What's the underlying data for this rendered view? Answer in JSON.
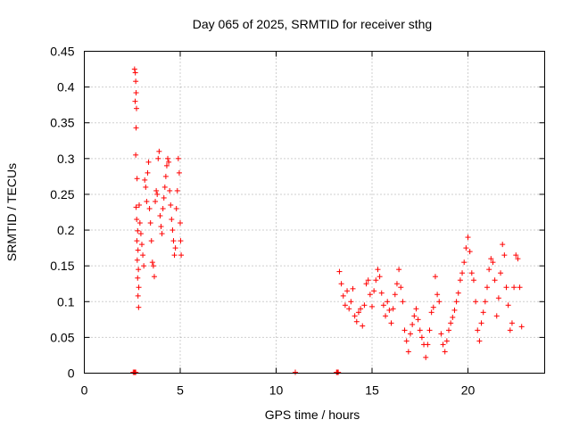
{
  "chart_data": {
    "type": "scatter",
    "title": "Day 065 of 2025, SRMTID for receiver sthg",
    "xlabel": "GPS time / hours",
    "ylabel": "SRMTID / TECUs",
    "xlim": [
      0,
      24
    ],
    "ylim": [
      0,
      0.45
    ],
    "xticks": [
      0,
      5,
      10,
      15,
      20
    ],
    "xtick_labels": [
      "0",
      "5",
      "10",
      "15",
      "20"
    ],
    "yticks": [
      0,
      0.05,
      0.1,
      0.15,
      0.2,
      0.25,
      0.3,
      0.35,
      0.4,
      0.45
    ],
    "ytick_labels": [
      "0",
      "0.05",
      "0.1",
      "0.15",
      "0.2",
      "0.25",
      "0.3",
      "0.35",
      "0.4",
      "0.45"
    ],
    "grid": true,
    "marker": "+",
    "color": "#ff0000",
    "series": [
      {
        "name": "SRMTID",
        "points": [
          [
            2.62,
            0.425
          ],
          [
            2.66,
            0.42
          ],
          [
            2.68,
            0.408
          ],
          [
            2.7,
            0.392
          ],
          [
            2.65,
            0.38
          ],
          [
            2.72,
            0.37
          ],
          [
            2.7,
            0.343
          ],
          [
            2.68,
            0.305
          ],
          [
            2.75,
            0.272
          ],
          [
            2.7,
            0.232
          ],
          [
            2.73,
            0.215
          ],
          [
            2.78,
            0.199
          ],
          [
            2.74,
            0.185
          ],
          [
            2.8,
            0.172
          ],
          [
            2.76,
            0.158
          ],
          [
            2.82,
            0.145
          ],
          [
            2.78,
            0.133
          ],
          [
            2.84,
            0.12
          ],
          [
            2.8,
            0.108
          ],
          [
            2.83,
            0.092
          ],
          [
            2.86,
            0.235
          ],
          [
            2.9,
            0.21
          ],
          [
            2.95,
            0.195
          ],
          [
            3.0,
            0.18
          ],
          [
            3.05,
            0.165
          ],
          [
            3.1,
            0.15
          ],
          [
            3.15,
            0.27
          ],
          [
            3.2,
            0.26
          ],
          [
            3.25,
            0.24
          ],
          [
            3.3,
            0.28
          ],
          [
            3.35,
            0.295
          ],
          [
            3.4,
            0.23
          ],
          [
            3.45,
            0.21
          ],
          [
            3.5,
            0.185
          ],
          [
            3.55,
            0.155
          ],
          [
            3.6,
            0.15
          ],
          [
            3.65,
            0.135
          ],
          [
            3.7,
            0.24
          ],
          [
            3.75,
            0.255
          ],
          [
            3.8,
            0.25
          ],
          [
            3.85,
            0.3
          ],
          [
            3.9,
            0.31
          ],
          [
            3.95,
            0.22
          ],
          [
            4.0,
            0.205
          ],
          [
            4.05,
            0.195
          ],
          [
            4.1,
            0.23
          ],
          [
            4.15,
            0.245
          ],
          [
            4.2,
            0.26
          ],
          [
            4.25,
            0.275
          ],
          [
            4.3,
            0.29
          ],
          [
            4.35,
            0.3
          ],
          [
            4.4,
            0.295
          ],
          [
            4.45,
            0.255
          ],
          [
            4.5,
            0.235
          ],
          [
            4.55,
            0.215
          ],
          [
            4.6,
            0.2
          ],
          [
            4.65,
            0.185
          ],
          [
            4.7,
            0.165
          ],
          [
            4.75,
            0.175
          ],
          [
            4.8,
            0.23
          ],
          [
            4.85,
            0.255
          ],
          [
            4.9,
            0.3
          ],
          [
            4.95,
            0.28
          ],
          [
            5.0,
            0.21
          ],
          [
            5.02,
            0.185
          ],
          [
            5.05,
            0.165
          ],
          [
            13.3,
            0.142
          ],
          [
            13.4,
            0.125
          ],
          [
            13.5,
            0.108
          ],
          [
            13.6,
            0.095
          ],
          [
            13.7,
            0.115
          ],
          [
            13.8,
            0.09
          ],
          [
            13.9,
            0.1
          ],
          [
            14.0,
            0.118
          ],
          [
            14.1,
            0.08
          ],
          [
            14.2,
            0.072
          ],
          [
            14.3,
            0.085
          ],
          [
            14.4,
            0.09
          ],
          [
            14.5,
            0.066
          ],
          [
            14.6,
            0.095
          ],
          [
            14.7,
            0.125
          ],
          [
            14.8,
            0.13
          ],
          [
            14.9,
            0.11
          ],
          [
            15.0,
            0.093
          ],
          [
            15.1,
            0.115
          ],
          [
            15.2,
            0.13
          ],
          [
            15.3,
            0.145
          ],
          [
            15.4,
            0.135
          ],
          [
            15.5,
            0.112
          ],
          [
            15.6,
            0.095
          ],
          [
            15.7,
            0.08
          ],
          [
            15.8,
            0.1
          ],
          [
            15.9,
            0.088
          ],
          [
            16.0,
            0.07
          ],
          [
            16.1,
            0.09
          ],
          [
            16.2,
            0.11
          ],
          [
            16.3,
            0.125
          ],
          [
            16.4,
            0.145
          ],
          [
            16.5,
            0.12
          ],
          [
            16.6,
            0.1
          ],
          [
            16.7,
            0.06
          ],
          [
            16.8,
            0.045
          ],
          [
            16.9,
            0.03
          ],
          [
            17.0,
            0.055
          ],
          [
            17.1,
            0.068
          ],
          [
            17.2,
            0.08
          ],
          [
            17.3,
            0.09
          ],
          [
            17.4,
            0.075
          ],
          [
            17.5,
            0.06
          ],
          [
            17.6,
            0.05
          ],
          [
            17.7,
            0.04
          ],
          [
            17.8,
            0.022
          ],
          [
            17.9,
            0.04
          ],
          [
            18.0,
            0.06
          ],
          [
            18.1,
            0.085
          ],
          [
            18.2,
            0.092
          ],
          [
            18.3,
            0.135
          ],
          [
            18.4,
            0.11
          ],
          [
            18.5,
            0.1
          ],
          [
            18.6,
            0.055
          ],
          [
            18.7,
            0.04
          ],
          [
            18.8,
            0.03
          ],
          [
            18.9,
            0.045
          ],
          [
            19.0,
            0.06
          ],
          [
            19.1,
            0.07
          ],
          [
            19.2,
            0.078
          ],
          [
            19.3,
            0.088
          ],
          [
            19.4,
            0.1
          ],
          [
            19.5,
            0.112
          ],
          [
            19.6,
            0.13
          ],
          [
            19.7,
            0.14
          ],
          [
            19.8,
            0.155
          ],
          [
            19.9,
            0.175
          ],
          [
            20.0,
            0.19
          ],
          [
            20.1,
            0.17
          ],
          [
            20.2,
            0.14
          ],
          [
            20.3,
            0.13
          ],
          [
            20.4,
            0.1
          ],
          [
            20.5,
            0.06
          ],
          [
            20.6,
            0.045
          ],
          [
            20.7,
            0.07
          ],
          [
            20.8,
            0.085
          ],
          [
            20.9,
            0.1
          ],
          [
            21.0,
            0.12
          ],
          [
            21.1,
            0.145
          ],
          [
            21.2,
            0.16
          ],
          [
            21.3,
            0.155
          ],
          [
            21.4,
            0.13
          ],
          [
            21.5,
            0.08
          ],
          [
            21.6,
            0.105
          ],
          [
            21.7,
            0.14
          ],
          [
            21.8,
            0.18
          ],
          [
            21.9,
            0.165
          ],
          [
            22.0,
            0.12
          ],
          [
            22.1,
            0.095
          ],
          [
            22.2,
            0.06
          ],
          [
            22.3,
            0.07
          ],
          [
            22.4,
            0.12
          ],
          [
            22.5,
            0.165
          ],
          [
            22.6,
            0.16
          ],
          [
            22.7,
            0.12
          ],
          [
            22.8,
            0.065
          ]
        ]
      }
    ],
    "zero_points": [
      2.55,
      2.6,
      2.62,
      2.65,
      2.68,
      11.0,
      13.15,
      13.18,
      13.2,
      13.24
    ]
  }
}
